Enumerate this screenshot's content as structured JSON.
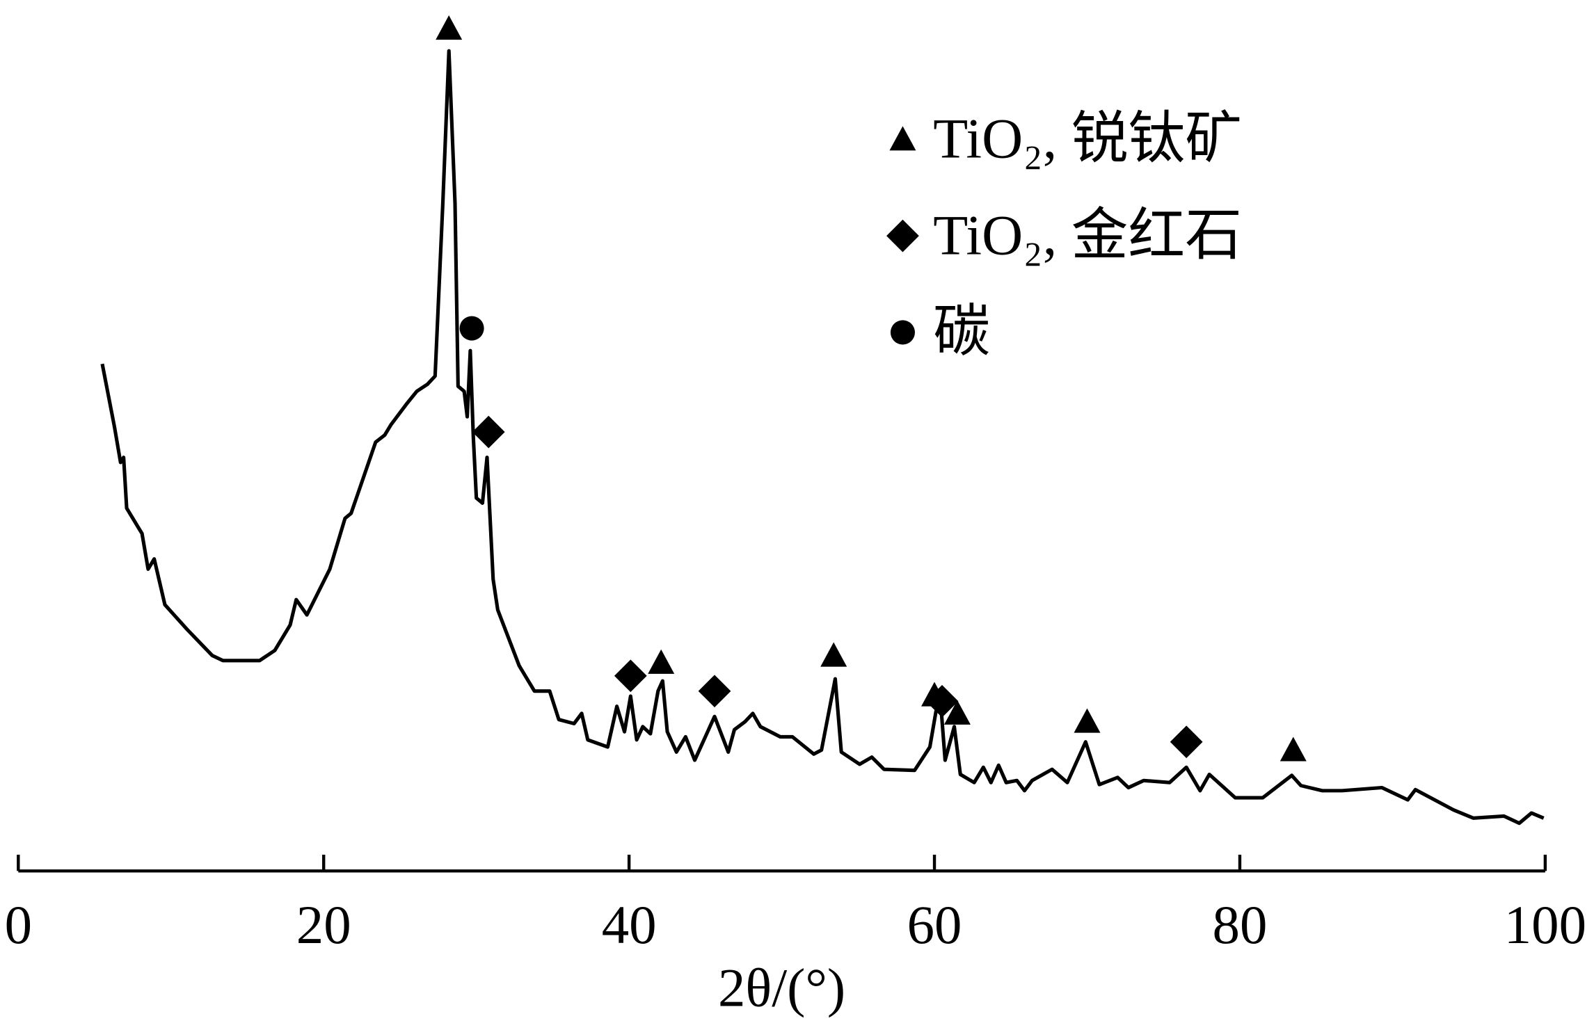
{
  "chart_data": {
    "type": "line",
    "x_label": "2θ/(°)",
    "xlim": [
      0,
      100
    ],
    "xticks": [
      0,
      20,
      40,
      60,
      80,
      100
    ],
    "ylim": [
      0,
      850
    ],
    "color": "#000000",
    "x": [
      5.5,
      6.3,
      6.7,
      6.9,
      7.1,
      8.1,
      8.5,
      8.9,
      9.6,
      11.1,
      12.7,
      13.4,
      15.8,
      16.8,
      17.8,
      18.2,
      18.9,
      20.4,
      20.8,
      21.4,
      21.8,
      23.4,
      24.0,
      24.4,
      25.4,
      26.1,
      26.8,
      27.3,
      27.8,
      28.2,
      28.6,
      28.8,
      29.2,
      29.4,
      29.6,
      29.8,
      30.0,
      30.4,
      30.7,
      31.1,
      31.4,
      32.8,
      33.8,
      34.8,
      35.4,
      36.4,
      36.9,
      37.3,
      38.6,
      39.2,
      39.7,
      40.1,
      40.5,
      40.9,
      41.4,
      41.9,
      42.2,
      42.5,
      43.1,
      43.7,
      44.3,
      45.6,
      46.5,
      46.9,
      47.6,
      48.1,
      48.6,
      49.9,
      50.7,
      52.1,
      52.6,
      53.5,
      53.9,
      55.1,
      55.9,
      56.7,
      58.7,
      59.7,
      60.1,
      60.4,
      60.7,
      61.3,
      61.7,
      62.6,
      63.2,
      63.7,
      64.2,
      64.7,
      65.4,
      65.9,
      66.4,
      67.7,
      68.7,
      69.9,
      70.8,
      72.0,
      72.7,
      73.7,
      75.4,
      76.5,
      77.4,
      78.0,
      79.7,
      81.5,
      83.4,
      84.0,
      85.4,
      86.7,
      89.3,
      91.0,
      91.5,
      94.0,
      95.3,
      97.3,
      98.3,
      99.1,
      99.9
    ],
    "values": [
      499,
      437,
      402,
      407,
      357,
      332,
      297,
      307,
      262,
      237,
      212,
      207,
      207,
      217,
      242,
      267,
      252,
      297,
      317,
      347,
      352,
      422,
      429,
      439,
      459,
      472,
      479,
      487,
      657,
      807,
      657,
      477,
      472,
      447,
      512,
      427,
      367,
      362,
      407,
      287,
      257,
      202,
      177,
      177,
      149,
      145,
      155,
      129,
      122,
      162,
      137,
      172,
      129,
      142,
      135,
      177,
      187,
      137,
      117,
      132,
      109,
      152,
      117,
      139,
      147,
      155,
      142,
      132,
      132,
      115,
      119,
      189,
      117,
      105,
      112,
      100,
      99,
      122,
      157,
      167,
      109,
      142,
      95,
      87,
      102,
      87,
      104,
      87,
      89,
      79,
      89,
      100,
      87,
      127,
      85,
      92,
      82,
      89,
      87,
      102,
      79,
      95,
      72,
      72,
      94,
      84,
      79,
      79,
      82,
      70,
      80,
      60,
      52,
      54,
      47,
      57,
      52
    ],
    "markers": [
      {
        "marker": "triangle",
        "label": "TiO₂, 锐钛矿",
        "x": [
          28.2,
          42.1,
          53.4,
          60.0,
          61.5,
          70.0,
          83.5
        ],
        "y": [
          829,
          205,
          212,
          173,
          155,
          147,
          119
        ]
      },
      {
        "marker": "diamond",
        "label": "TiO₂, 金红石",
        "x": [
          40.1,
          45.6,
          30.8,
          60.5,
          76.5
        ],
        "y": [
          192,
          177,
          432,
          167,
          127
        ]
      },
      {
        "marker": "circle",
        "label": "碳",
        "x": [
          29.7
        ],
        "y": [
          534
        ]
      }
    ]
  }
}
